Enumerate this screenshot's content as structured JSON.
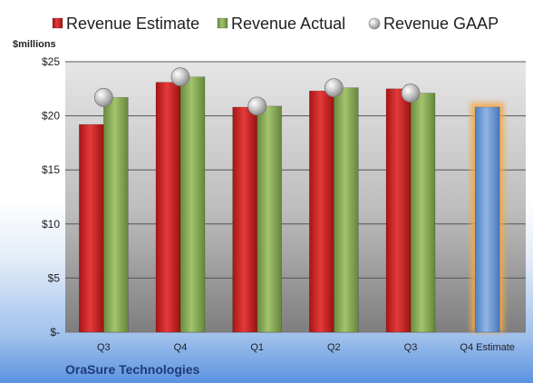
{
  "chart_data": {
    "type": "bar",
    "title": "",
    "ylabel": "$millions",
    "xlabel": "",
    "ylim": [
      0,
      25
    ],
    "ytick_values": [
      0,
      5,
      10,
      15,
      20,
      25
    ],
    "ytick_labels": [
      "$-",
      "$5",
      "$10",
      "$15",
      "$20",
      "$25"
    ],
    "categories": [
      "Q3",
      "Q4",
      "Q1",
      "Q2",
      "Q3",
      "Q4 Estimate"
    ],
    "series": [
      {
        "name": "Revenue Estimate",
        "type": "bar",
        "color": "#d92b2b",
        "values": [
          19.2,
          23.1,
          20.8,
          22.3,
          22.5,
          null
        ]
      },
      {
        "name": "Revenue Actual",
        "type": "bar",
        "color": "#8cb15a",
        "values": [
          21.7,
          23.6,
          20.9,
          22.6,
          22.1,
          null
        ]
      },
      {
        "name": "Revenue GAAP",
        "type": "marker",
        "color": "#b8b8b8",
        "values": [
          21.7,
          23.6,
          20.9,
          22.6,
          22.1,
          null
        ]
      }
    ],
    "forecast": {
      "category_index": 5,
      "value": 20.8,
      "color": "#6f9fd8",
      "glow": "#f4a848"
    },
    "grid": true,
    "legend_position": "top"
  },
  "footer": {
    "company": "OraSure Technologies"
  }
}
